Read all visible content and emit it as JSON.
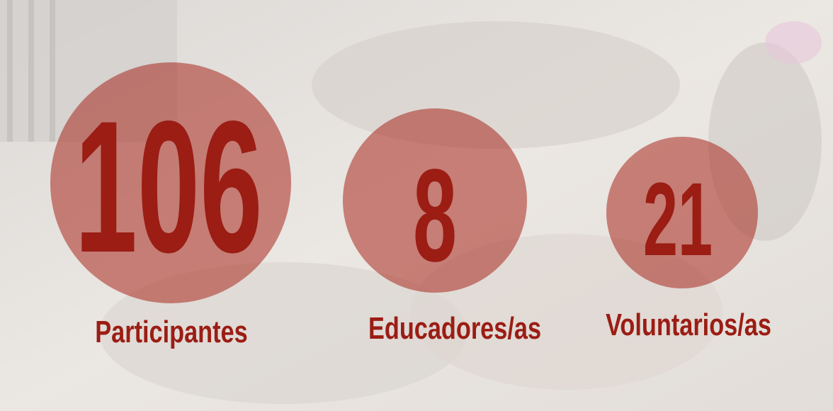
{
  "stats": [
    {
      "value": 106,
      "label": "Participantes"
    },
    {
      "value": 8,
      "label": "Educadores/as"
    },
    {
      "value": 21,
      "label": "Voluntarios/as"
    }
  ]
}
